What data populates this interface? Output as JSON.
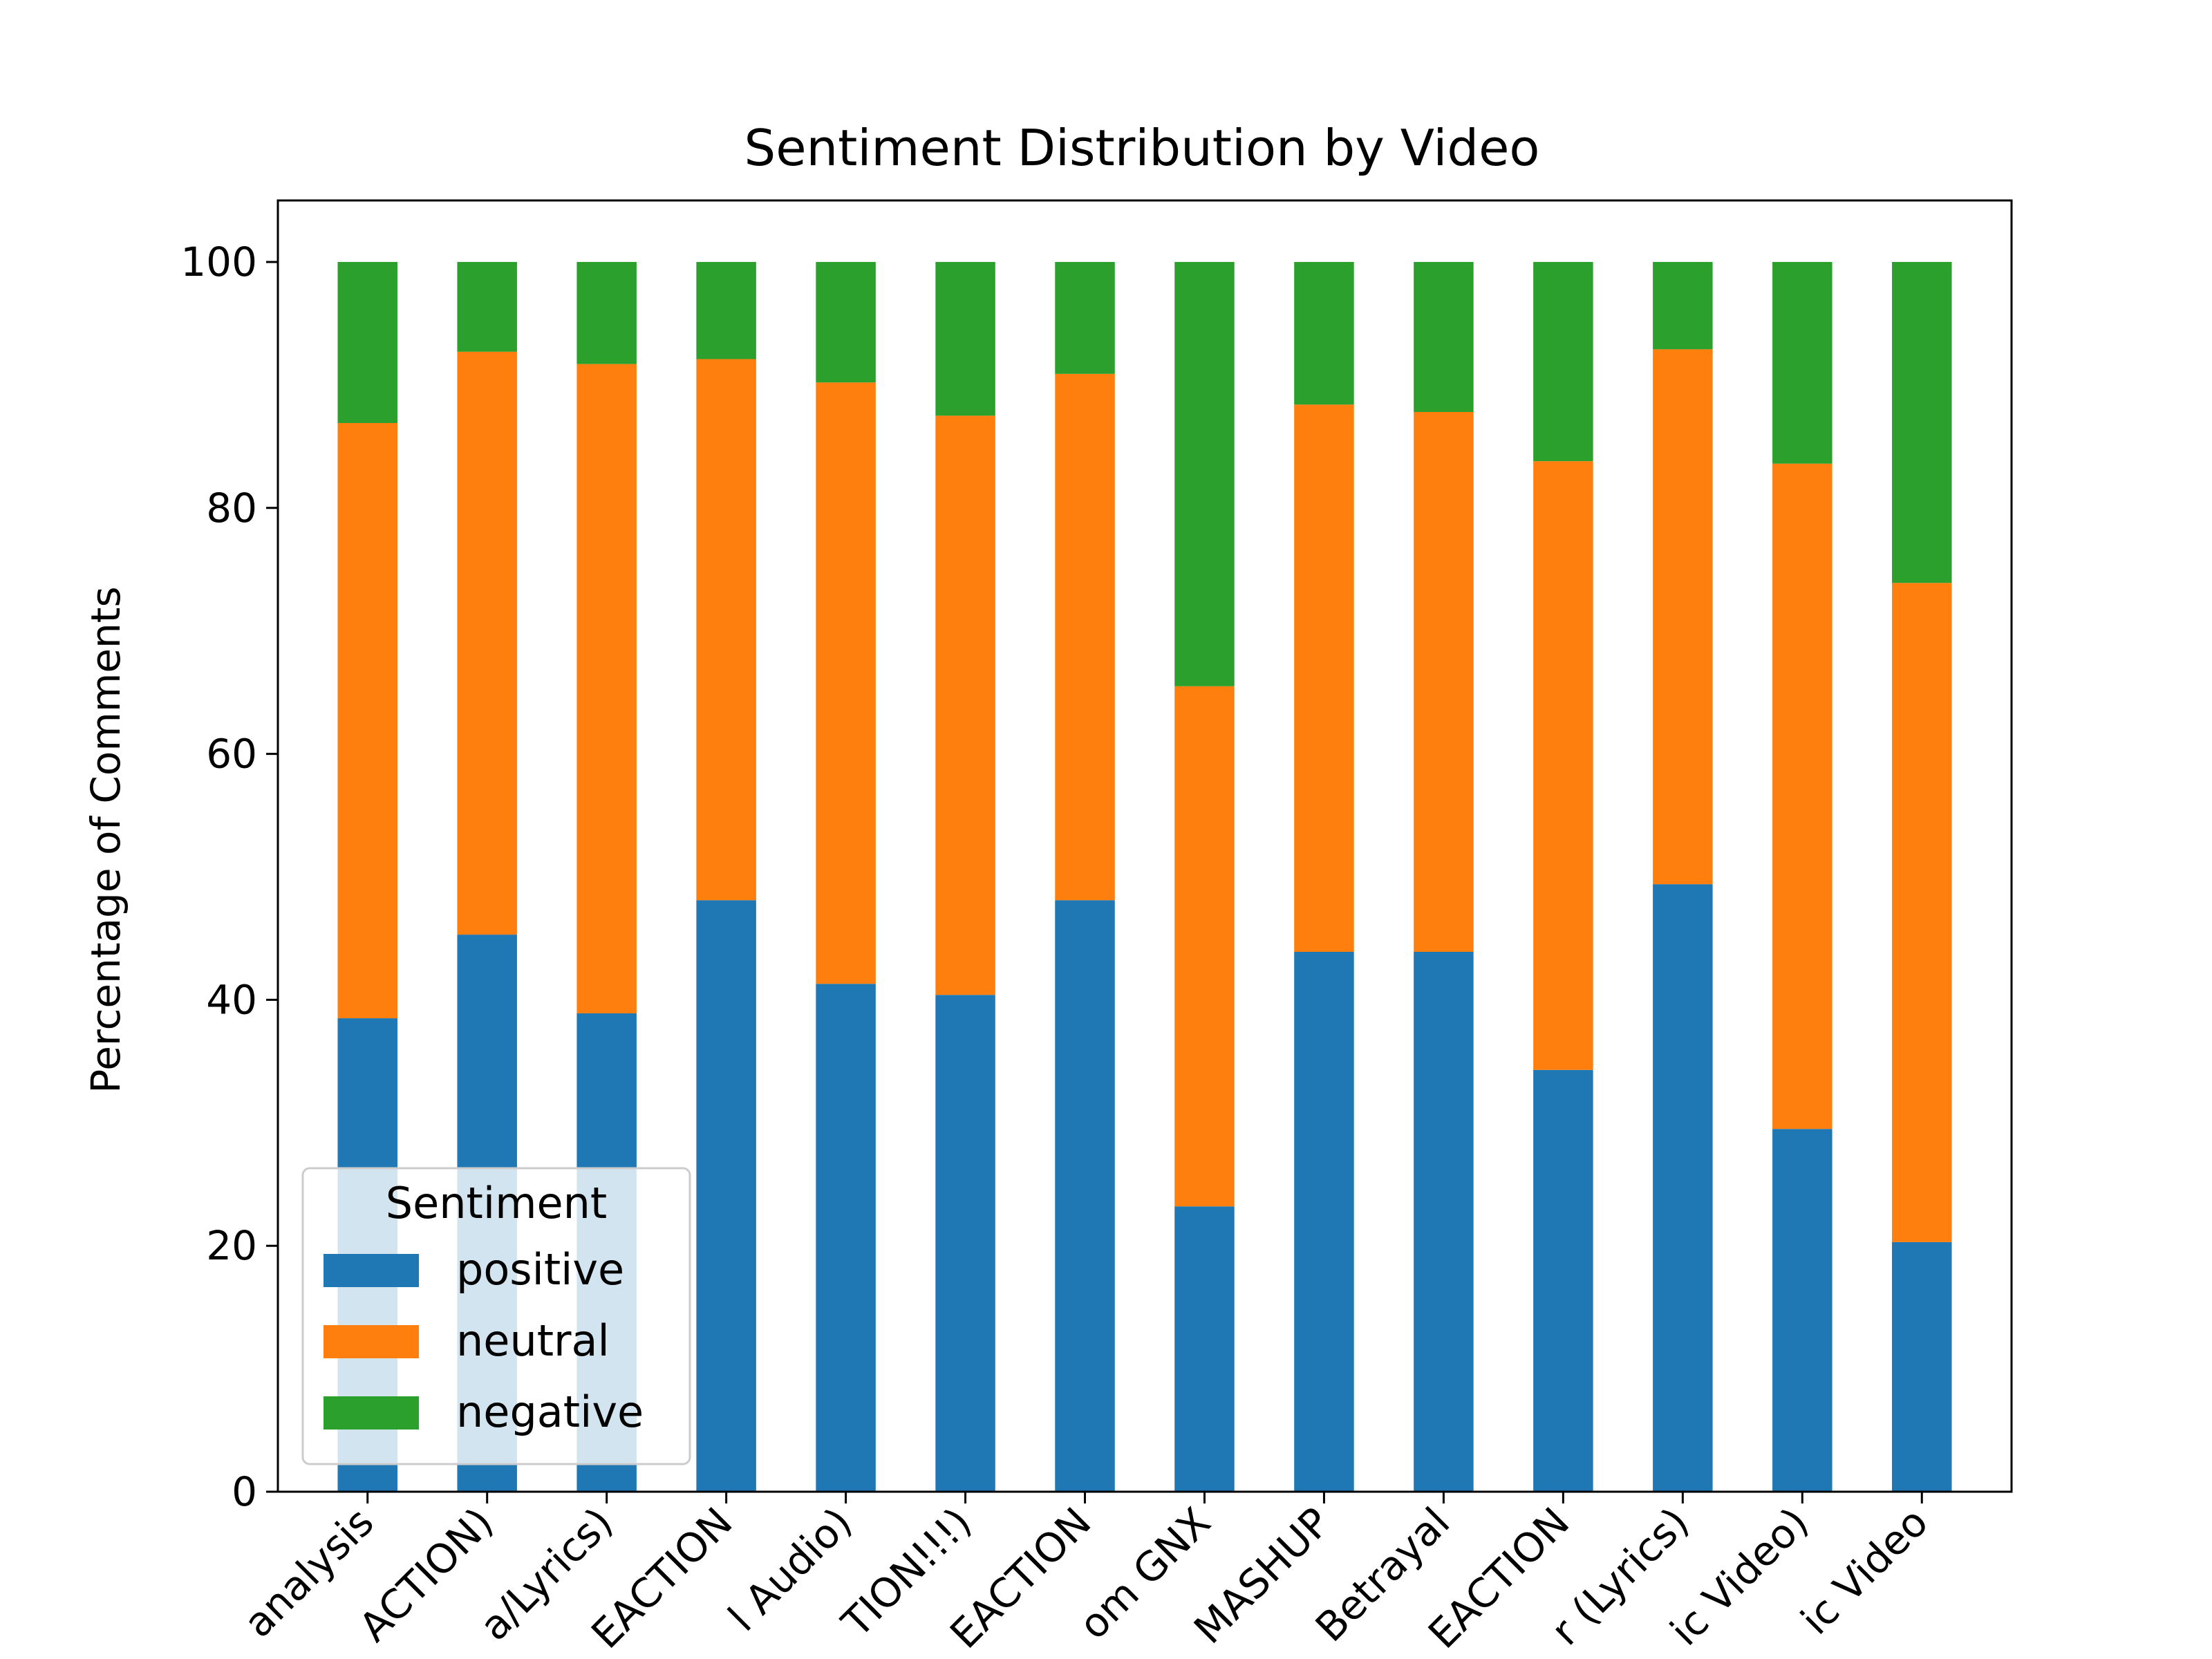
{
  "chart_data": {
    "type": "bar",
    "stacked": true,
    "title": "Sentiment Distribution by Video",
    "xlabel": "",
    "ylabel": "Percentage of Comments",
    "ylim": [
      0,
      105
    ],
    "yticks": [
      0,
      20,
      40,
      60,
      80,
      100
    ],
    "grid": false,
    "legend": {
      "title": "Sentiment",
      "placement": "lower-left"
    },
    "categories": [
      "analysis",
      "ACTION)",
      "a/Lyrics)",
      "EACTION",
      "l Audio)",
      "TION!!!)",
      "EACTION",
      "om GNX",
      "MASHUP",
      "Betrayal",
      "EACTION",
      "r (Lyrics)",
      "ic Video)",
      "ic Video"
    ],
    "series": [
      {
        "name": "positive",
        "color": "#1f77b4",
        "values": [
          38.5,
          45.3,
          38.9,
          48.1,
          41.3,
          40.4,
          48.1,
          23.2,
          43.9,
          43.9,
          34.3,
          49.4,
          29.5,
          20.3
        ]
      },
      {
        "name": "neutral",
        "color": "#ff7f0e",
        "values": [
          48.4,
          47.4,
          52.8,
          44.0,
          48.9,
          47.1,
          42.8,
          42.3,
          44.5,
          43.9,
          49.5,
          43.5,
          54.1,
          53.6
        ]
      },
      {
        "name": "negative",
        "color": "#2ca02c",
        "values": [
          13.1,
          7.3,
          8.3,
          7.9,
          9.8,
          12.5,
          9.1,
          34.5,
          11.6,
          12.2,
          16.2,
          7.1,
          16.4,
          26.1
        ]
      }
    ]
  }
}
